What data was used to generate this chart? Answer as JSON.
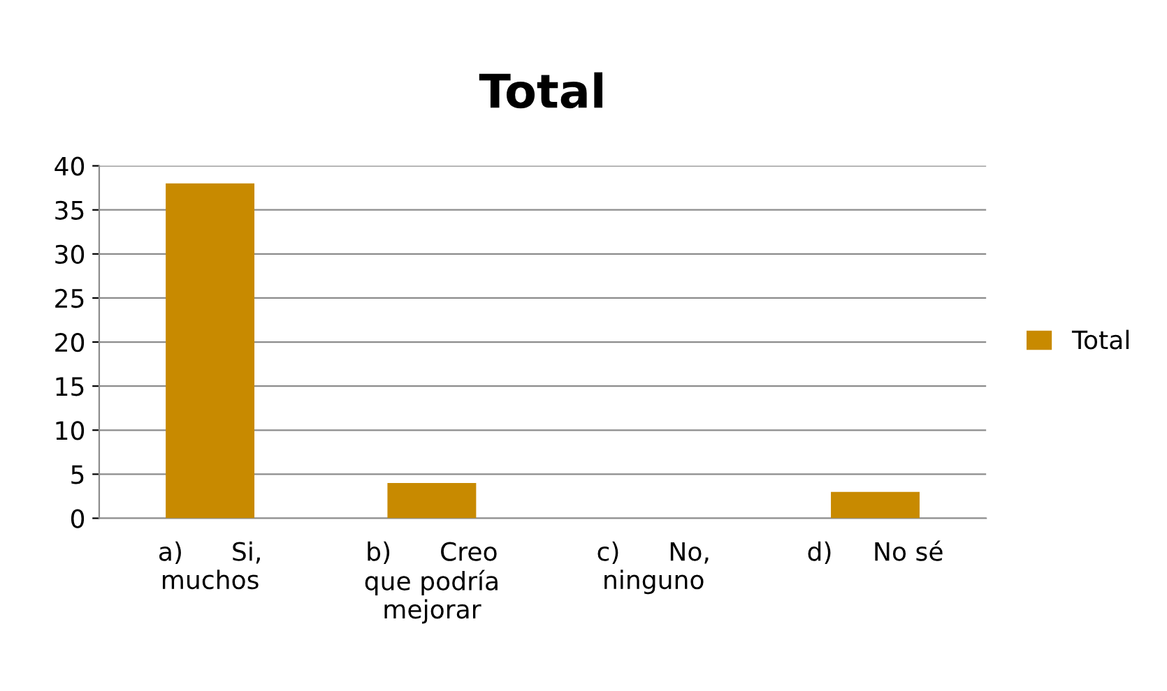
{
  "chart_data": {
    "type": "bar",
    "title": "Total",
    "categories": [
      "a)      Si,\nmuchos",
      "b)      Creo\nque podría\nmejorar",
      "c)      No,\nninguno",
      "d)     No sé"
    ],
    "series": [
      {
        "name": "Total",
        "color": "#c88a00",
        "values": [
          38,
          4,
          0,
          3
        ]
      }
    ],
    "ylim": [
      0,
      40
    ],
    "yticks": [
      0,
      5,
      10,
      15,
      20,
      25,
      30,
      35,
      40
    ],
    "grid": "y",
    "legend": "right"
  }
}
